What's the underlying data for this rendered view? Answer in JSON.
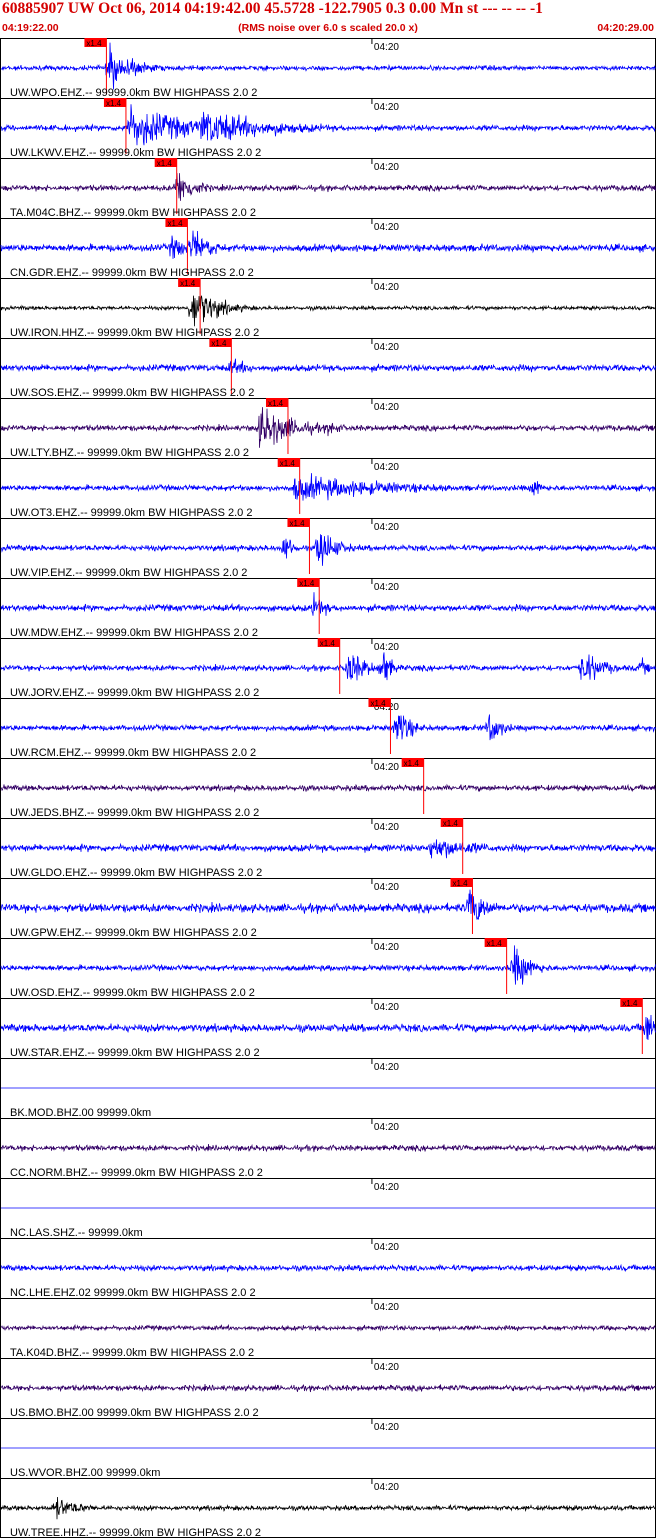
{
  "header": {
    "title": "60885907 UW Oct 06, 2014 04:19:42.00   45.5728 -122.7905  0.3 0.00 Mn st --- -- --   -1",
    "start_time": "04:19:22.00",
    "end_time": "04:20:29.00",
    "rms_note": "(RMS noise over 6.0 s scaled 20.0 x)"
  },
  "colors": {
    "header": "#d40000",
    "pick": "#ff0000",
    "trace_blue": "#0000ff",
    "trace_purple": "#330066",
    "trace_black": "#000000",
    "frame": "#000000"
  },
  "chart_data": {
    "type": "line",
    "title": "60885907 UW Oct 06, 2014 04:19:42.00   45.5728 -122.7905  0.3 0.00 Mn st --- -- --   -1",
    "subtitle": "(RMS noise over 6.0 s scaled 20.0 x)",
    "x_start": "04:19:22.00",
    "x_end": "04:20:29.00",
    "x_range_seconds": [
      0,
      67
    ],
    "minute_tick": {
      "label": "04:20",
      "t_seconds": 38
    },
    "pick_label": "x1.4",
    "traces": [
      {
        "label": "UW.WPO.EHZ.-- 99999.0km BW  HIGHPASS  2.0  2",
        "color": "blue",
        "pick_t": 10.8,
        "noise": 0.1,
        "bursts": [
          {
            "t": 10.5,
            "dur": 6,
            "amp": 0.9
          }
        ]
      },
      {
        "label": "UW.LKWV.EHZ.-- 99999.0km BW  HIGHPASS  2.0  2",
        "color": "blue",
        "pick_t": 12.8,
        "noise": 0.12,
        "bursts": [
          {
            "t": 12.5,
            "dur": 14,
            "amp": 1.0
          },
          {
            "t": 20,
            "dur": 16,
            "amp": 0.85
          }
        ]
      },
      {
        "label": "TA.M04C.BHZ.-- 99999.0km BW  HIGHPASS  2.0  2",
        "color": "purple",
        "pick_t": 18.0,
        "noise": 0.12,
        "bursts": [
          {
            "t": 17.5,
            "dur": 4,
            "amp": 0.9
          }
        ]
      },
      {
        "label": "CN.GDR.EHZ.-- 99999.0km BW  HIGHPASS  2.0  2",
        "color": "blue",
        "pick_t": 19.1,
        "noise": 0.15,
        "bursts": [
          {
            "t": 17.0,
            "dur": 4,
            "amp": 0.6
          },
          {
            "t": 19.0,
            "dur": 5,
            "amp": 0.8
          }
        ]
      },
      {
        "label": "UW.IRON.HHZ.-- 99999.0km BW  HIGHPASS  2.0  2",
        "color": "black",
        "pick_t": 20.4,
        "noise": 0.08,
        "bursts": [
          {
            "t": 19.0,
            "dur": 6,
            "amp": 1.0
          }
        ]
      },
      {
        "label": "UW.SOS.EHZ.-- 99999.0km BW  HIGHPASS  2.0  2",
        "color": "blue",
        "pick_t": 23.6,
        "noise": 0.14,
        "bursts": [
          {
            "t": 23.0,
            "dur": 6,
            "amp": 0.4
          }
        ]
      },
      {
        "label": "UW.LTY.BHZ.-- 99999.0km BW  HIGHPASS  2.0  2",
        "color": "purple",
        "pick_t": 29.4,
        "noise": 0.12,
        "bursts": [
          {
            "t": 26.0,
            "dur": 8,
            "amp": 1.0
          },
          {
            "t": 33.0,
            "dur": 3,
            "amp": 0.4
          }
        ]
      },
      {
        "label": "UW.OT3.EHZ.-- 99999.0km BW  HIGHPASS  2.0  2",
        "color": "blue",
        "pick_t": 30.6,
        "noise": 0.12,
        "bursts": [
          {
            "t": 29.5,
            "dur": 24,
            "amp": 0.6
          },
          {
            "t": 54.0,
            "dur": 2,
            "amp": 0.5
          }
        ]
      },
      {
        "label": "UW.VIP.EHZ.-- 99999.0km BW  HIGHPASS  2.0  2",
        "color": "blue",
        "pick_t": 31.6,
        "noise": 0.12,
        "bursts": [
          {
            "t": 28.5,
            "dur": 2,
            "amp": 0.7
          },
          {
            "t": 32.0,
            "dur": 4,
            "amp": 1.0
          }
        ]
      },
      {
        "label": "UW.MDW.EHZ.-- 99999.0km BW  HIGHPASS  2.0  2",
        "color": "blue",
        "pick_t": 32.6,
        "noise": 0.14,
        "bursts": [
          {
            "t": 31.5,
            "dur": 3,
            "amp": 0.6
          }
        ]
      },
      {
        "label": "UW.JORV.EHZ.-- 99999.0km BW  HIGHPASS  2.0  2",
        "color": "blue",
        "pick_t": 34.7,
        "noise": 0.12,
        "bursts": [
          {
            "t": 35.0,
            "dur": 4,
            "amp": 0.9
          },
          {
            "t": 38.5,
            "dur": 2,
            "amp": 1.0
          },
          {
            "t": 59.0,
            "dur": 5,
            "amp": 0.8
          },
          {
            "t": 65.0,
            "dur": 2,
            "amp": 0.4
          }
        ]
      },
      {
        "label": "UW.RCM.EHZ.-- 99999.0km BW  HIGHPASS  2.0  2",
        "color": "blue",
        "pick_t": 39.9,
        "noise": 0.12,
        "bursts": [
          {
            "t": 40.0,
            "dur": 3,
            "amp": 1.0
          },
          {
            "t": 49.5,
            "dur": 3,
            "amp": 0.8
          }
        ]
      },
      {
        "label": "UW.JEDS.BHZ.-- 99999.0km BW  HIGHPASS  2.0  2",
        "color": "purple",
        "pick_t": 43.3,
        "noise": 0.12,
        "bursts": []
      },
      {
        "label": "UW.GLDO.EHZ.-- 99999.0km BW  HIGHPASS  2.0  2",
        "color": "blue",
        "pick_t": 47.3,
        "noise": 0.15,
        "bursts": [
          {
            "t": 43.5,
            "dur": 12,
            "amp": 0.55
          }
        ]
      },
      {
        "label": "UW.GPW.EHZ.-- 99999.0km BW  HIGHPASS  2.0  2",
        "color": "blue",
        "pick_t": 48.3,
        "noise": 0.18,
        "bursts": [
          {
            "t": 47.5,
            "dur": 4,
            "amp": 1.0
          }
        ]
      },
      {
        "label": "UW.OSD.EHZ.-- 99999.0km BW  HIGHPASS  2.0  2",
        "color": "blue",
        "pick_t": 51.8,
        "noise": 0.12,
        "bursts": [
          {
            "t": 52.0,
            "dur": 4,
            "amp": 1.0
          }
        ]
      },
      {
        "label": "UW.STAR.EHZ.-- 99999.0km BW  HIGHPASS  2.0  2",
        "color": "blue",
        "pick_t": 65.7,
        "noise": 0.16,
        "bursts": [
          {
            "t": 65.5,
            "dur": 2,
            "amp": 1.0
          }
        ]
      },
      {
        "label": "BK.MOD.BHZ.00 99999.0km",
        "color": "blue",
        "pick_t": null,
        "noise": 0.0,
        "bursts": []
      },
      {
        "label": "CC.NORM.BHZ.-- 99999.0km BW  HIGHPASS  2.0  2",
        "color": "purple",
        "pick_t": null,
        "noise": 0.12,
        "bursts": []
      },
      {
        "label": "NC.LAS.SHZ.-- 99999.0km",
        "color": "blue",
        "pick_t": null,
        "noise": 0.0,
        "bursts": []
      },
      {
        "label": "NC.LHE.EHZ.02 99999.0km BW  HIGHPASS  2.0  2",
        "color": "blue",
        "pick_t": null,
        "noise": 0.12,
        "bursts": []
      },
      {
        "label": "TA.K04D.BHZ.-- 99999.0km BW  HIGHPASS  2.0  2",
        "color": "purple",
        "pick_t": null,
        "noise": 0.1,
        "bursts": []
      },
      {
        "label": "US.BMO.BHZ.00 99999.0km BW  HIGHPASS  2.0  2",
        "color": "purple",
        "pick_t": null,
        "noise": 0.12,
        "bursts": []
      },
      {
        "label": "US.WVOR.BHZ.00 99999.0km",
        "color": "blue",
        "pick_t": null,
        "noise": 0.0,
        "bursts": []
      },
      {
        "label": "UW.TREE.HHZ.-- 99999.0km BW  HIGHPASS  2.0  2",
        "color": "black",
        "pick_t": null,
        "noise": 0.1,
        "bursts": [
          {
            "t": 5.0,
            "dur": 6,
            "amp": 0.5
          }
        ]
      }
    ]
  }
}
